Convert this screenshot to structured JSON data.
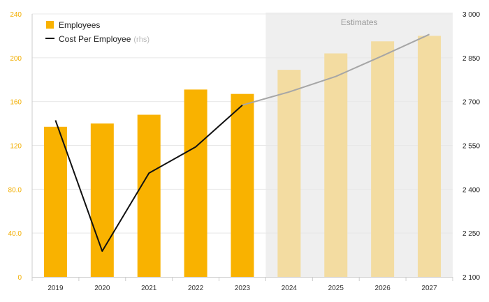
{
  "chart_data": {
    "type": "bar",
    "categories": [
      "2019",
      "2020",
      "2021",
      "2022",
      "2023",
      "2024",
      "2025",
      "2026",
      "2027"
    ],
    "estimate_region_label": "Estimates",
    "estimate_start_category": "2024",
    "series": [
      {
        "name": "Employees",
        "type": "bar",
        "axis": "left",
        "values": [
          137,
          140,
          148,
          171,
          167,
          189,
          204,
          215,
          220
        ]
      },
      {
        "name": "Cost Per Employee",
        "name_suffix": "(rhs)",
        "type": "line",
        "axis": "right",
        "values": [
          2636,
          2188,
          2455,
          2545,
          2688,
          2733,
          2786,
          2857,
          2930
        ]
      }
    ],
    "y_left": {
      "ylim": [
        0,
        240
      ],
      "ticks": [
        0,
        40,
        80,
        120,
        160,
        200,
        240
      ],
      "tick_labels": [
        "0",
        "40.0",
        "80.0",
        "120",
        "160",
        "200",
        "240"
      ]
    },
    "y_right": {
      "ylim": [
        2100,
        3000
      ],
      "ticks": [
        2100,
        2250,
        2400,
        2550,
        2700,
        2850,
        3000
      ],
      "tick_labels": [
        "2 100",
        "2 250",
        "2 400",
        "2 550",
        "2 700",
        "2 850",
        "3 000"
      ]
    },
    "legend_position": "top-left",
    "grid": true,
    "colors": {
      "bar": "#f9b200",
      "bar_estimate": "#f3dca1",
      "line": "#111111",
      "line_estimate": "#a6a6a6",
      "estimate_background": "#efefef",
      "grid": "#e8e8e8"
    }
  }
}
